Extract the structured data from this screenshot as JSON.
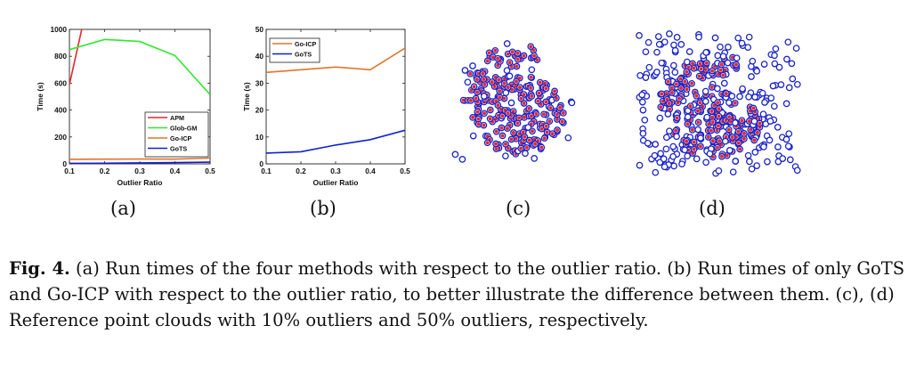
{
  "chart_data": [
    {
      "type": "line",
      "panel": "(a)",
      "xlabel": "Outlier Ratio",
      "ylabel": "Time (s)",
      "xlim": [
        0.1,
        0.5
      ],
      "ylim": [
        0,
        1000
      ],
      "xticks": [
        "0.1",
        "0.2",
        "0.3",
        "0.4",
        "0.5"
      ],
      "yticks": [
        "0",
        "200",
        "400",
        "600",
        "800",
        "1000"
      ],
      "legend_position": "bottom-right",
      "grid": false,
      "series": [
        {
          "name": "APM",
          "color": "#e8262d",
          "x": [
            0.1,
            0.135
          ],
          "y": [
            590,
            1000
          ]
        },
        {
          "name": "Glob-GM",
          "color": "#2ee82e",
          "x": [
            0.1,
            0.2,
            0.3,
            0.4,
            0.5
          ],
          "y": [
            850,
            925,
            910,
            805,
            515
          ]
        },
        {
          "name": "Go-ICP",
          "color": "#e0752c",
          "x": [
            0.1,
            0.2,
            0.3,
            0.4,
            0.5
          ],
          "y": [
            34,
            35,
            36,
            35,
            43
          ]
        },
        {
          "name": "GoTS",
          "color": "#1020d0",
          "x": [
            0.1,
            0.2,
            0.3,
            0.4,
            0.5
          ],
          "y": [
            4,
            4.5,
            7,
            9,
            12.5
          ]
        }
      ]
    },
    {
      "type": "line",
      "panel": "(b)",
      "xlabel": "Outlier Ratio",
      "ylabel": "Time (s)",
      "xlim": [
        0.1,
        0.5
      ],
      "ylim": [
        0,
        50
      ],
      "xticks": [
        "0.1",
        "0.2",
        "0.3",
        "0.4",
        "0.5"
      ],
      "yticks": [
        "0",
        "10",
        "20",
        "30",
        "40",
        "50"
      ],
      "legend_position": "top-left",
      "grid": false,
      "series": [
        {
          "name": "Go-ICP",
          "color": "#e0752c",
          "x": [
            0.1,
            0.2,
            0.3,
            0.4,
            0.5
          ],
          "y": [
            34,
            35,
            36,
            35,
            43
          ]
        },
        {
          "name": "GoTS",
          "color": "#1020d0",
          "x": [
            0.1,
            0.2,
            0.3,
            0.4,
            0.5
          ],
          "y": [
            4,
            4.5,
            7,
            9,
            12.5
          ]
        }
      ]
    }
  ],
  "point_clouds": {
    "inlier_color": "#e8262d",
    "outlier_color": "#1a24c8"
  },
  "subcaptions": [
    "(a)",
    "(b)",
    "(c)",
    "(d)"
  ],
  "caption": {
    "label": "Fig. 4.",
    "text": " (a) Run times of the four methods with respect to the outlier ratio. (b) Run times of only GoTS and Go-ICP with respect to the outlier ratio, to better illustrate the difference between them. (c), (d) Reference point clouds with 10% outliers and 50% outliers, respectively."
  }
}
